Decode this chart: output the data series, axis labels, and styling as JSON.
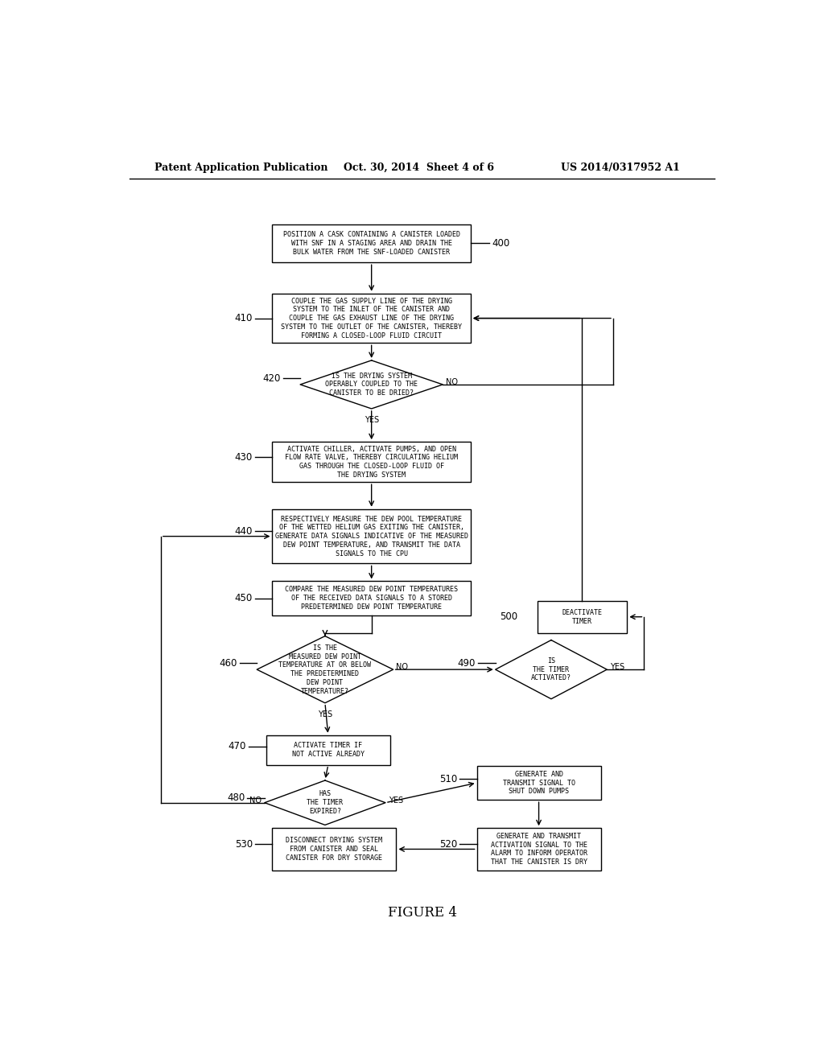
{
  "header_left": "Patent Application Publication",
  "header_center": "Oct. 30, 2014  Sheet 4 of 6",
  "header_right": "US 2014/0317952 A1",
  "figure_label": "FIGURE 4",
  "bg": "#ffffff",
  "lc": "#000000"
}
